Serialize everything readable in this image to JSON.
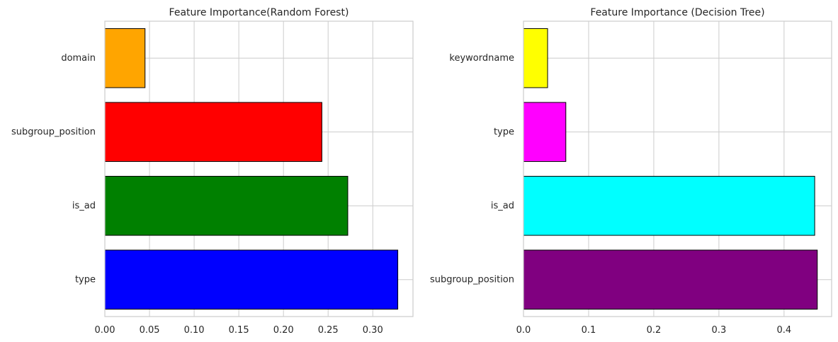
{
  "chart_data": [
    {
      "type": "bar",
      "orientation": "horizontal",
      "title": "Feature Importance(Random Forest)",
      "xlabel": "",
      "ylabel": "",
      "categories": [
        "type",
        "is_ad",
        "subgroup_position",
        "domain"
      ],
      "values": [
        0.328,
        0.272,
        0.243,
        0.045
      ],
      "colors": [
        "#0000ff",
        "#008000",
        "#ff0000",
        "#ffa500"
      ],
      "xlim": [
        0,
        0.345
      ],
      "xticks": [
        0.0,
        0.05,
        0.1,
        0.15,
        0.2,
        0.25,
        0.3
      ],
      "xtick_labels": [
        "0.00",
        "0.05",
        "0.10",
        "0.15",
        "0.20",
        "0.25",
        "0.30"
      ],
      "grid": true
    },
    {
      "type": "bar",
      "orientation": "horizontal",
      "title": "Feature Importance (Decision Tree)",
      "xlabel": "",
      "ylabel": "",
      "categories": [
        "subgroup_position",
        "is_ad",
        "type",
        "keywordname"
      ],
      "values": [
        0.451,
        0.447,
        0.065,
        0.037
      ],
      "colors": [
        "#800080",
        "#00ffff",
        "#ff00ff",
        "#ffff00"
      ],
      "xlim": [
        0,
        0.473
      ],
      "xticks": [
        0.0,
        0.1,
        0.2,
        0.3,
        0.4
      ],
      "xtick_labels": [
        "0.0",
        "0.1",
        "0.2",
        "0.3",
        "0.4"
      ],
      "grid": true
    }
  ]
}
